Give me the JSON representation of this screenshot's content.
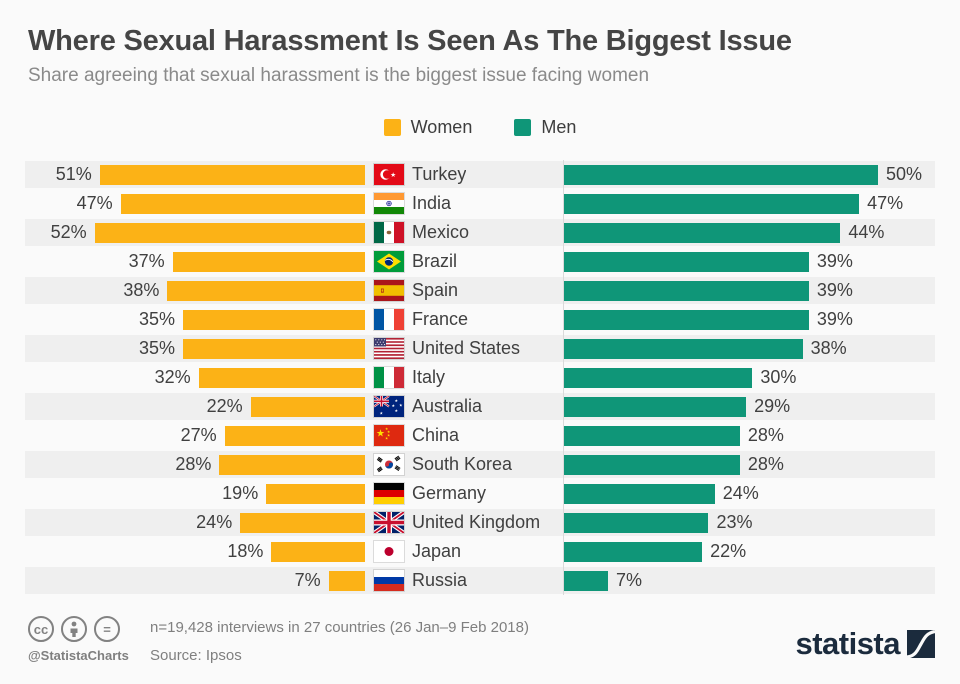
{
  "header": {
    "title": "Where Sexual Harassment Is Seen As The Biggest Issue",
    "subtitle": "Share agreeing that sexual harassment is the biggest issue facing women"
  },
  "legend": [
    {
      "label": "Women",
      "color": "#FCB216"
    },
    {
      "label": "Men",
      "color": "#0F9678"
    }
  ],
  "chart_data": {
    "type": "bar",
    "orientation": "butterfly-horizontal",
    "unit": "%",
    "categories": [
      "Turkey",
      "India",
      "Mexico",
      "Brazil",
      "Spain",
      "France",
      "United States",
      "Italy",
      "Australia",
      "China",
      "South Korea",
      "Germany",
      "United Kingdom",
      "Japan",
      "Russia"
    ],
    "flags": [
      "turkey",
      "india",
      "mexico",
      "brazil",
      "spain",
      "france",
      "usa",
      "italy",
      "australia",
      "china",
      "south-korea",
      "germany",
      "uk",
      "japan",
      "russia"
    ],
    "series": [
      {
        "name": "Women",
        "side": "left",
        "color": "#FCB216",
        "values": [
          51,
          47,
          52,
          37,
          38,
          35,
          35,
          32,
          22,
          27,
          28,
          19,
          24,
          18,
          7
        ]
      },
      {
        "name": "Men",
        "side": "right",
        "color": "#0F9678",
        "values": [
          50,
          47,
          44,
          39,
          39,
          39,
          38,
          30,
          29,
          28,
          28,
          24,
          23,
          22,
          7
        ]
      }
    ],
    "xlim": [
      0,
      60
    ],
    "row_stripe_color": "#EFEFEF",
    "grid": false,
    "legend_position": "top-center"
  },
  "footer": {
    "license_icons": [
      {
        "name": "cc-icon",
        "glyph": "cc"
      },
      {
        "name": "attribution-person-icon",
        "glyph": "person"
      },
      {
        "name": "equals-icon",
        "glyph": "="
      }
    ],
    "handle": "@StatistaCharts",
    "note": "n=19,428 interviews in 27 countries (26 Jan–9 Feb 2018)",
    "source": "Source: Ipsos",
    "brand": "statista"
  }
}
